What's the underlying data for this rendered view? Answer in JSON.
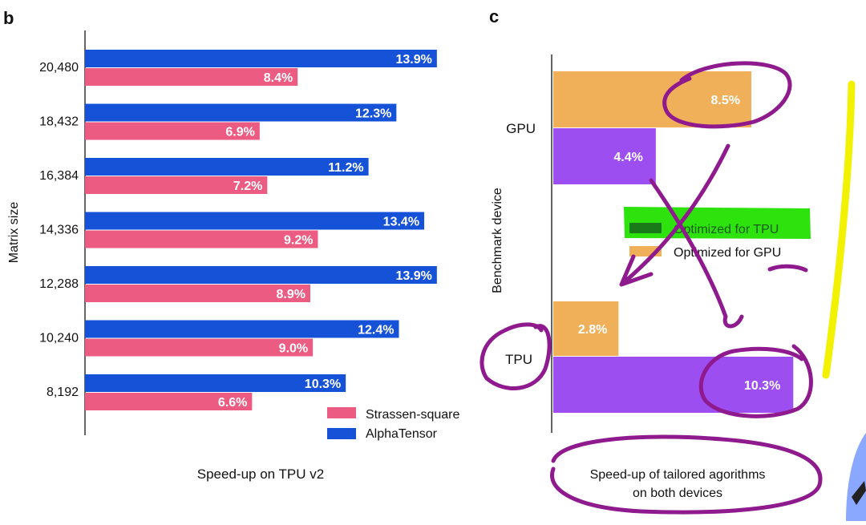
{
  "colors": {
    "alphatensor": "#1652d8",
    "strassen": "#eb5b82",
    "gpu_opt": "#f0b05a",
    "tpu_opt": "#9d4ef0",
    "highlight_green": "#22e000",
    "highlight_yellow": "#f2f200",
    "ink": "#8e1a8e",
    "axis": "#333333"
  },
  "chart_data": [
    {
      "panel": "b",
      "type": "bar",
      "orientation": "horizontal",
      "ylabel": "Matrix size",
      "xlabel": "Speed-up on TPU v2",
      "categories": [
        "20,480",
        "18,432",
        "16,384",
        "14,336",
        "12,288",
        "10,240",
        "8,192"
      ],
      "series": [
        {
          "name": "AlphaTensor",
          "values": [
            13.9,
            12.3,
            11.2,
            13.4,
            13.9,
            12.4,
            10.3
          ],
          "labels": [
            "13.9%",
            "12.3%",
            "11.2%",
            "13.4%",
            "13.9%",
            "12.4%",
            "10.3%"
          ]
        },
        {
          "name": "Strassen-square",
          "values": [
            8.4,
            6.9,
            7.2,
            9.2,
            8.9,
            9.0,
            6.6
          ],
          "labels": [
            "8.4%",
            "6.9%",
            "7.2%",
            "9.2%",
            "8.9%",
            "9.0%",
            "6.6%"
          ]
        }
      ],
      "legend": [
        "Strassen-square",
        "AlphaTensor"
      ],
      "legend_position": "bottom-right",
      "xlim": [
        0,
        14
      ]
    },
    {
      "panel": "c",
      "type": "bar",
      "orientation": "horizontal",
      "ylabel": "Benchmark device",
      "xlabel": "Speed-up of tailored agorithms\non both devices",
      "xlabel_lines": [
        "Speed-up of tailored agorithms",
        "on both devices"
      ],
      "categories": [
        "GPU",
        "TPU"
      ],
      "series": [
        {
          "name": "Optimized for GPU",
          "values": [
            8.5,
            2.8
          ],
          "labels": [
            "8.5%",
            "2.8%"
          ]
        },
        {
          "name": "Optimized for TPU",
          "values": [
            4.4,
            10.3
          ],
          "labels": [
            "4.4%",
            "10.3%"
          ]
        }
      ],
      "legend": [
        "Optimized for TPU",
        "Optimized for GPU"
      ],
      "legend_position": "center",
      "xlim": [
        0,
        10.5
      ]
    }
  ],
  "panel_labels": {
    "b": "b",
    "c": "c"
  }
}
